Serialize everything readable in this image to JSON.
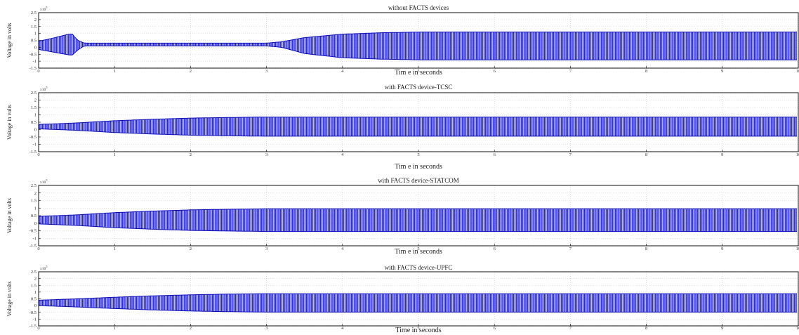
{
  "figure": {
    "accent_color": "#1414e6",
    "axis_color": "#000000",
    "grid_color": "#c8c8c8"
  },
  "chart_data": [
    {
      "type": "line",
      "title": "without FACTS devices",
      "xlabel": "Tim e in seconds",
      "ylabel": "Voltage in volts",
      "y_multiplier": "x10^5",
      "y_exponent": "5",
      "xlim": [
        0,
        10
      ],
      "ylim": [
        -1.5,
        2.5
      ],
      "x_ticks": [
        "0",
        "1",
        "2",
        "3",
        "4",
        "5",
        "6",
        "7",
        "8",
        "9",
        "10"
      ],
      "y_ticks": [
        "2.5",
        "2",
        "1.5",
        "1",
        "0.5",
        "0",
        "-0.5",
        "-1",
        "-1.5"
      ],
      "grid": true,
      "series": [
        {
          "color": "#1414e6",
          "envelope_x": [
            0,
            0.1,
            0.4,
            0.45,
            0.5,
            0.6,
            1,
            2,
            3,
            3.2,
            3.5,
            4,
            4.5,
            5,
            6,
            7,
            8,
            9,
            10
          ],
          "envelope_upper": [
            0.45,
            0.55,
            0.95,
            0.95,
            0.55,
            0.3,
            0.3,
            0.3,
            0.3,
            0.4,
            0.7,
            0.95,
            1.05,
            1.1,
            1.1,
            1.1,
            1.1,
            1.1,
            1.1
          ],
          "envelope_lower": [
            -0.15,
            -0.25,
            -0.55,
            -0.55,
            -0.25,
            0.1,
            0.1,
            0.1,
            0.1,
            0.0,
            -0.45,
            -0.75,
            -0.85,
            -0.9,
            -0.9,
            -0.9,
            -0.9,
            -0.9,
            -0.9
          ]
        }
      ]
    },
    {
      "type": "line",
      "title": "with FACTS device-TCSC",
      "xlabel": "Tim e in seconds",
      "ylabel": "Voltage in volts",
      "y_multiplier": "x10^5",
      "y_exponent": "5",
      "xlim": [
        0,
        10
      ],
      "ylim": [
        -1.5,
        2.5
      ],
      "x_ticks": [
        "0",
        "1",
        "2",
        "3",
        "4",
        "5",
        "6",
        "7",
        "8",
        "9",
        "10"
      ],
      "y_ticks": [
        "2.5",
        "2",
        "1.5",
        "1",
        "0.5",
        "0",
        "-0.5",
        "-1",
        "-1.5"
      ],
      "grid": true,
      "series": [
        {
          "color": "#1414e6",
          "envelope_x": [
            0,
            0.5,
            1,
            1.5,
            2,
            2.5,
            3,
            4,
            5,
            6,
            7,
            8,
            9,
            10
          ],
          "envelope_upper": [
            0.35,
            0.45,
            0.6,
            0.7,
            0.78,
            0.82,
            0.85,
            0.85,
            0.85,
            0.85,
            0.85,
            0.85,
            0.85,
            0.85
          ],
          "envelope_lower": [
            0.05,
            -0.05,
            -0.2,
            -0.3,
            -0.38,
            -0.42,
            -0.45,
            -0.45,
            -0.45,
            -0.45,
            -0.45,
            -0.45,
            -0.45,
            -0.45
          ]
        }
      ]
    },
    {
      "type": "line",
      "title": "with FACTS  device-STATCOM",
      "xlabel": "Tim e in seconds",
      "ylabel": "Voltage in volts",
      "y_multiplier": "x10^5",
      "y_exponent": "5",
      "xlim": [
        0,
        10
      ],
      "ylim": [
        -1.5,
        2.5
      ],
      "x_ticks": [
        "0",
        "1",
        "2",
        "3",
        "4",
        "5",
        "6",
        "7",
        "8",
        "9",
        "10"
      ],
      "y_ticks": [
        "2.5",
        "2",
        "1.5",
        "1",
        "0.5",
        "0",
        "-0.5",
        "-1",
        "-1.5"
      ],
      "grid": true,
      "series": [
        {
          "color": "#1414e6",
          "envelope_x": [
            0,
            0.5,
            1,
            1.5,
            2,
            2.5,
            3,
            4,
            5,
            6,
            7,
            8,
            9,
            10
          ],
          "envelope_upper": [
            0.45,
            0.55,
            0.7,
            0.8,
            0.88,
            0.92,
            0.95,
            0.95,
            0.95,
            0.95,
            0.95,
            0.95,
            0.95,
            0.95
          ],
          "envelope_lower": [
            -0.05,
            -0.15,
            -0.3,
            -0.4,
            -0.48,
            -0.52,
            -0.55,
            -0.55,
            -0.55,
            -0.55,
            -0.55,
            -0.55,
            -0.55,
            -0.55
          ]
        }
      ]
    },
    {
      "type": "line",
      "title": "with FACTS device-UPFC",
      "xlabel": "Time in seconds",
      "ylabel": "Voltage in volts",
      "y_multiplier": "x10^5",
      "y_exponent": "5",
      "xlim": [
        0,
        10
      ],
      "ylim": [
        -1.5,
        2.5
      ],
      "x_ticks": [
        "0",
        "1",
        "2",
        "3",
        "4",
        "5",
        "6",
        "7",
        "8",
        "9",
        "10"
      ],
      "y_ticks": [
        "2.5",
        "2",
        "1.5",
        "1",
        "0.5",
        "0",
        "-0.5",
        "-1",
        "-1.5"
      ],
      "grid": true,
      "series": [
        {
          "color": "#1414e6",
          "envelope_x": [
            0,
            0.5,
            1,
            1.5,
            2,
            2.5,
            3,
            4,
            5,
            6,
            7,
            8,
            9,
            10
          ],
          "envelope_upper": [
            0.4,
            0.5,
            0.62,
            0.72,
            0.8,
            0.85,
            0.88,
            0.88,
            0.88,
            0.88,
            0.88,
            0.88,
            0.88,
            0.88
          ],
          "envelope_lower": [
            0.0,
            -0.1,
            -0.22,
            -0.32,
            -0.4,
            -0.45,
            -0.48,
            -0.48,
            -0.48,
            -0.48,
            -0.48,
            -0.48,
            -0.48,
            -0.48
          ]
        }
      ]
    }
  ]
}
